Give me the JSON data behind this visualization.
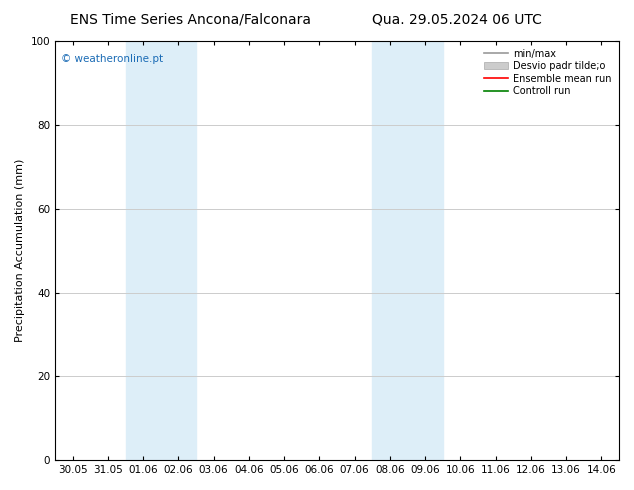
{
  "title_left": "ENS Time Series Ancona/Falconara",
  "title_right": "Qua. 29.05.2024 06 UTC",
  "ylabel": "Precipitation Accumulation (mm)",
  "watermark": "© weatheronline.pt",
  "ylim": [
    0,
    100
  ],
  "yticks": [
    0,
    20,
    40,
    60,
    80,
    100
  ],
  "x_labels": [
    "30.05",
    "31.05",
    "01.06",
    "02.06",
    "03.06",
    "04.06",
    "05.06",
    "06.06",
    "07.06",
    "08.06",
    "09.06",
    "10.06",
    "11.06",
    "12.06",
    "13.06",
    "14.06"
  ],
  "shaded_regions": [
    {
      "xstart": 2,
      "xend": 4
    },
    {
      "xstart": 9,
      "xend": 11
    }
  ],
  "shade_color": "#ddeef8",
  "legend_entries": [
    {
      "label": "min/max",
      "color": "#999999",
      "lw": 1.2,
      "style": "-",
      "type": "line"
    },
    {
      "label": "Desvio padr tilde;o",
      "color": "#cccccc",
      "lw": 6,
      "style": "-",
      "type": "patch"
    },
    {
      "label": "Ensemble mean run",
      "color": "red",
      "lw": 1.2,
      "style": "-",
      "type": "line"
    },
    {
      "label": "Controll run",
      "color": "green",
      "lw": 1.2,
      "style": "-",
      "type": "line"
    }
  ],
  "background_color": "#ffffff",
  "grid_color": "#cccccc",
  "title_fontsize": 10,
  "label_fontsize": 8,
  "tick_fontsize": 7.5,
  "watermark_color": "#1a6bb5"
}
